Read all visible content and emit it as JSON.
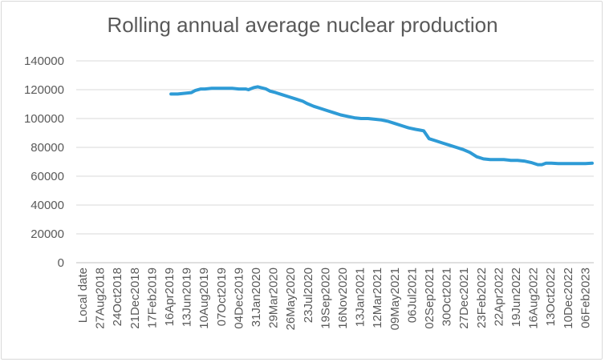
{
  "chart_data": {
    "type": "line",
    "title": "Rolling annual average nuclear production",
    "xlabel": "",
    "ylabel": "",
    "ylim": [
      0,
      140000
    ],
    "y_ticks": [
      "0",
      "20000",
      "40000",
      "60000",
      "80000",
      "100000",
      "120000",
      "140000"
    ],
    "x_tick_labels": [
      "Local date",
      "27Aug2018",
      "24Oct2018",
      "21Dec2018",
      "17Feb2019",
      "16Apr2019",
      "13Jun2019",
      "10Aug2019",
      "07Oct2019",
      "04Dec2019",
      "31Jan2020",
      "29Mar2020",
      "26May2020",
      "23Jul2020",
      "19Sep2020",
      "16Nov2020",
      "13Jan2021",
      "12Mar2021",
      "09May2021",
      "06Jul2021",
      "02Sep2021",
      "30Oct2021",
      "27Dec2021",
      "23Feb2022",
      "22Apr2022",
      "19Jun2022",
      "16Aug2022",
      "13Oct2022",
      "10Dec2022",
      "06Feb2023"
    ],
    "series": [
      {
        "name": "Rolling annual average",
        "color": "#2e9bd6",
        "points": [
          [
            6.5,
            117000
          ],
          [
            7.0,
            117000
          ],
          [
            7.5,
            117500
          ],
          [
            8.0,
            118000
          ],
          [
            8.3,
            119500
          ],
          [
            8.7,
            120500
          ],
          [
            9.0,
            120500
          ],
          [
            9.5,
            121000
          ],
          [
            10.0,
            121000
          ],
          [
            10.5,
            121000
          ],
          [
            11.0,
            121000
          ],
          [
            11.5,
            120500
          ],
          [
            12.0,
            120500
          ],
          [
            12.2,
            120000
          ],
          [
            12.6,
            121500
          ],
          [
            12.9,
            122000
          ],
          [
            13.1,
            121500
          ],
          [
            13.5,
            120500
          ],
          [
            13.8,
            119000
          ],
          [
            14.2,
            118000
          ],
          [
            14.7,
            116500
          ],
          [
            15.2,
            115000
          ],
          [
            15.7,
            113500
          ],
          [
            16.2,
            112000
          ],
          [
            16.5,
            110500
          ],
          [
            17.0,
            108500
          ],
          [
            17.5,
            107000
          ],
          [
            18.0,
            105500
          ],
          [
            18.5,
            104000
          ],
          [
            19.0,
            102500
          ],
          [
            19.5,
            101500
          ],
          [
            20.0,
            100500
          ],
          [
            20.5,
            100000
          ],
          [
            21.0,
            100000
          ],
          [
            21.5,
            99500
          ],
          [
            22.0,
            99000
          ],
          [
            22.5,
            98000
          ],
          [
            23.0,
            96500
          ],
          [
            23.5,
            95000
          ],
          [
            24.0,
            93500
          ],
          [
            24.5,
            92500
          ],
          [
            24.8,
            92000
          ],
          [
            25.1,
            91500
          ],
          [
            25.5,
            86000
          ],
          [
            26.0,
            84500
          ],
          [
            26.5,
            83000
          ],
          [
            27.0,
            81500
          ],
          [
            27.5,
            80000
          ],
          [
            28.0,
            78500
          ],
          [
            28.5,
            76500
          ],
          [
            29.0,
            73500
          ],
          [
            29.5,
            72000
          ],
          [
            30.0,
            71500
          ],
          [
            30.5,
            71500
          ],
          [
            31.0,
            71500
          ],
          [
            31.5,
            71000
          ],
          [
            32.0,
            71000
          ],
          [
            32.5,
            70500
          ],
          [
            33.0,
            69500
          ],
          [
            33.5,
            68000
          ],
          [
            33.8,
            68000
          ],
          [
            34.1,
            69000
          ],
          [
            34.5,
            69000
          ],
          [
            35.0,
            68800
          ],
          [
            35.5,
            68800
          ],
          [
            36.0,
            68800
          ],
          [
            36.5,
            68800
          ],
          [
            37.0,
            68800
          ],
          [
            37.5,
            69000
          ]
        ]
      }
    ]
  }
}
